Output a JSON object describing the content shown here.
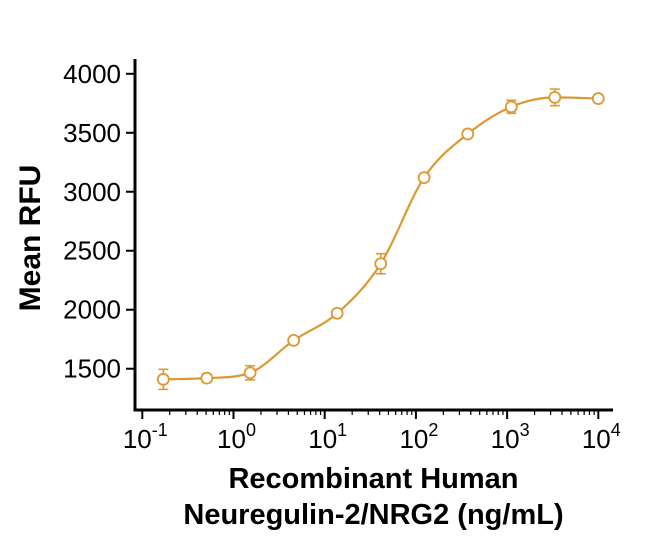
{
  "chart_data": {
    "type": "scatter",
    "curve": "smooth-sigmoid-through-points",
    "title": "",
    "ylabel": "Mean RFU",
    "xlabel_lines": [
      "Recombinant Human",
      "Neuregulin-2/NRG2 (ng/mL)"
    ],
    "x_scale": "log10",
    "x_range_log": [
      -1.08,
      4.15
    ],
    "ylim": [
      1150,
      4100
    ],
    "grid": false,
    "legend_position": "none",
    "colors": {
      "curve": "#DC9933",
      "axis": "#000000",
      "text": "#000000",
      "background": "#FFFFFF"
    },
    "y_ticks": [
      {
        "value": 1500,
        "label": "1500"
      },
      {
        "value": 2000,
        "label": "2000"
      },
      {
        "value": 2500,
        "label": "2500"
      },
      {
        "value": 3000,
        "label": "3000"
      },
      {
        "value": 3500,
        "label": "3500"
      },
      {
        "value": 4000,
        "label": "4000"
      }
    ],
    "x_ticks": [
      {
        "value": 0.1,
        "base": "10",
        "exp": "-1"
      },
      {
        "value": 1,
        "base": "10",
        "exp": "0"
      },
      {
        "value": 10,
        "base": "10",
        "exp": "1"
      },
      {
        "value": 100,
        "base": "10",
        "exp": "2"
      },
      {
        "value": 1000,
        "base": "10",
        "exp": "3"
      },
      {
        "value": 10000,
        "base": "10",
        "exp": "4"
      }
    ],
    "x_minor_tick_multiples": [
      2,
      3,
      4,
      5,
      6,
      7,
      8,
      9
    ],
    "series": [
      {
        "name": "Mean RFU",
        "marker": "open-circle",
        "color": "#DC9933",
        "points": [
          {
            "x": 0.17,
            "y": 1410,
            "err": 85
          },
          {
            "x": 0.51,
            "y": 1420,
            "err": 35
          },
          {
            "x": 1.52,
            "y": 1465,
            "err": 60
          },
          {
            "x": 4.57,
            "y": 1740,
            "err": 15
          },
          {
            "x": 13.7,
            "y": 1970,
            "err": 20
          },
          {
            "x": 41.2,
            "y": 2390,
            "err": 85
          },
          {
            "x": 123,
            "y": 3120,
            "err": 20
          },
          {
            "x": 370,
            "y": 3490,
            "err": 30
          },
          {
            "x": 1111,
            "y": 3720,
            "err": 55
          },
          {
            "x": 3333,
            "y": 3800,
            "err": 70
          },
          {
            "x": 10000,
            "y": 3790,
            "err": 15
          }
        ]
      }
    ]
  }
}
